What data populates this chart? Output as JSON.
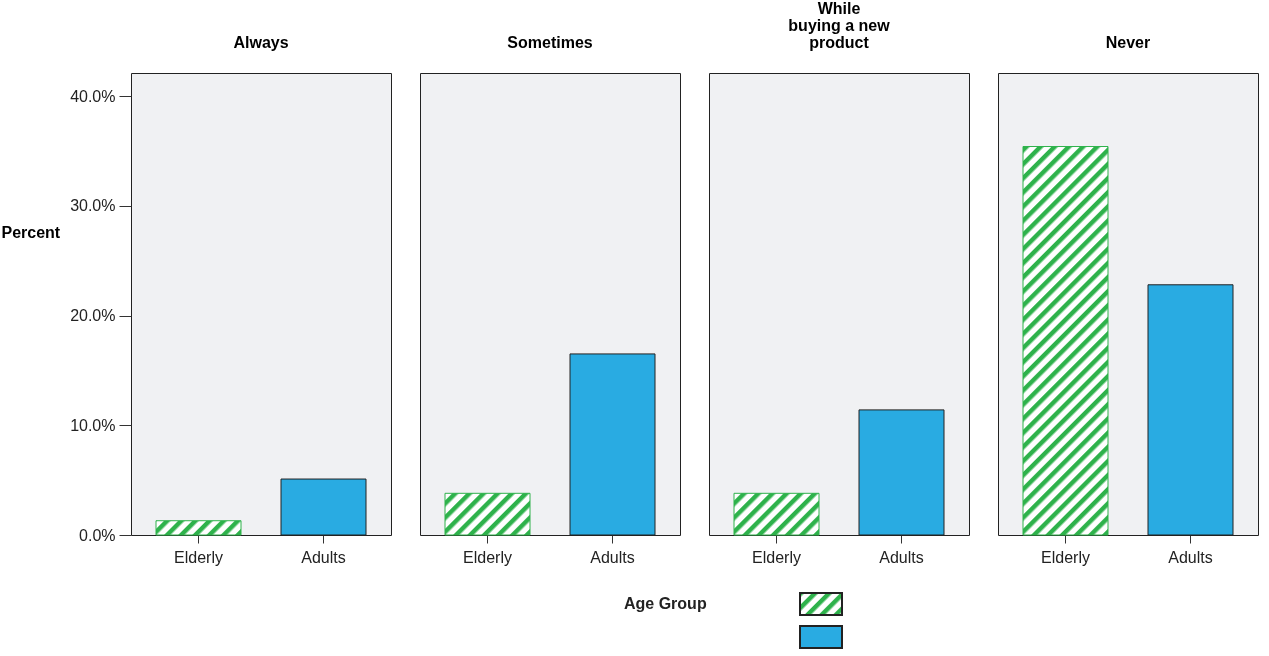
{
  "chart_data": [
    {
      "type": "bar",
      "title": "Always",
      "ylabel": "Percent",
      "categories": [
        "Elderly",
        "Adults"
      ],
      "values": [
        1.3,
        5.1
      ],
      "colors": [
        "#2eb24b",
        "#29abe2"
      ],
      "ylim": [
        0,
        42.1
      ],
      "yticks": [
        {
          "value": 0,
          "label": "0.0%"
        },
        {
          "value": 10,
          "label": "10.0%"
        },
        {
          "value": 20,
          "label": "20.0%"
        },
        {
          "value": 30,
          "label": "30.0%"
        },
        {
          "value": 40,
          "label": "40.0%"
        }
      ],
      "grid": false
    },
    {
      "type": "bar",
      "title": "Sometimes",
      "categories": [
        "Elderly",
        "Adults"
      ],
      "values": [
        3.8,
        16.5
      ],
      "colors": [
        "#2eb24b",
        "#29abe2"
      ],
      "ylim": [
        0,
        42.1
      ],
      "tick_labels": "x",
      "grid": false
    },
    {
      "type": "bar",
      "title": "While\nbuying a new\nproduct",
      "categories": [
        "Elderly",
        "Adults"
      ],
      "values": [
        3.8,
        11.4
      ],
      "colors": [
        "#2eb24b",
        "#29abe2"
      ],
      "ylim": [
        0,
        42.1
      ],
      "tick_labels": "x",
      "grid": false,
      "legend_title": "Age Group"
    },
    {
      "type": "bar",
      "title": "Never",
      "categories": [
        "Elderly",
        "Adults"
      ],
      "values": [
        35.4,
        22.8
      ],
      "colors": [
        "#2eb24b",
        "#29abe2"
      ],
      "ylim": [
        0,
        42.1
      ],
      "tick_labels": "x",
      "grid": false
    }
  ]
}
